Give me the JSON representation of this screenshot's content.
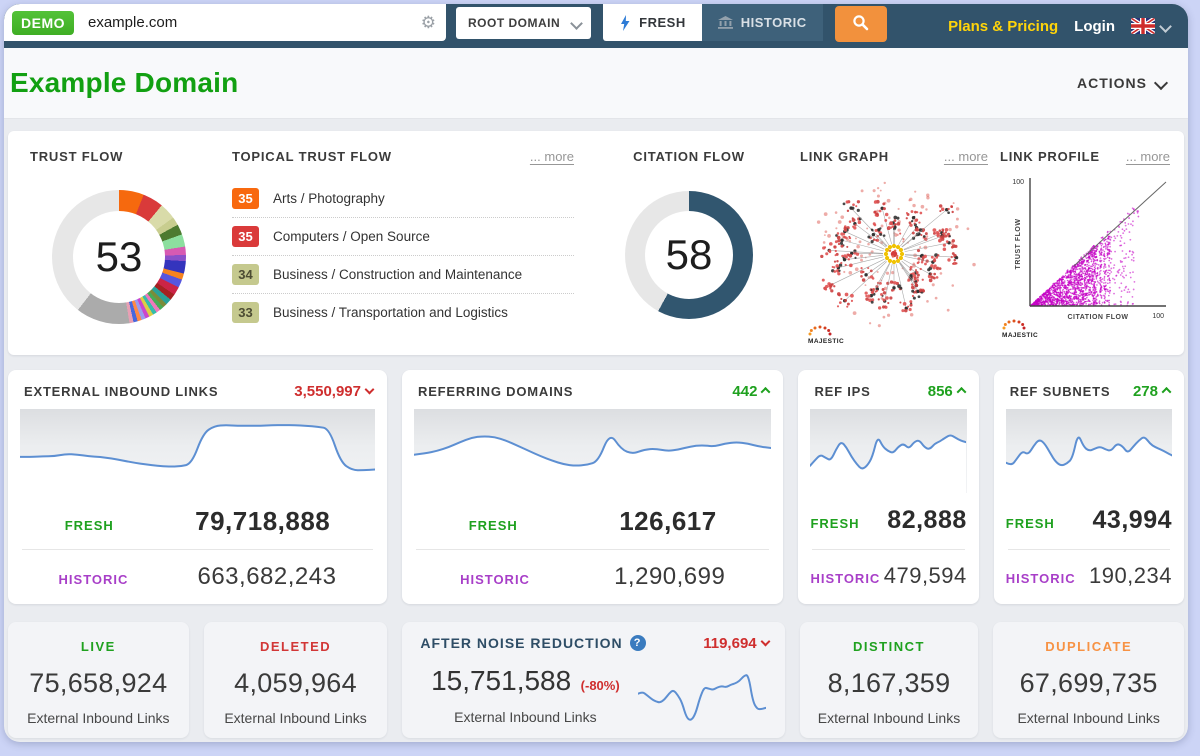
{
  "topnav": {
    "demo_badge": "DEMO",
    "search_value": "example.com",
    "scope_select": "ROOT DOMAIN",
    "tab_fresh": "FRESH",
    "tab_historic": "HISTORIC",
    "plans_pricing": "Plans & Pricing",
    "login": "Login"
  },
  "header": {
    "title": "Example Domain",
    "actions": "ACTIONS"
  },
  "colors": {
    "nav_background": "#32536b",
    "accent_green": "#1fa11f",
    "accent_red": "#cf2e2e",
    "accent_purple": "#a83fc8",
    "accent_orange": "#f79244",
    "spark_blue": "#5d8fd2",
    "title_green": "#12a012",
    "citation_blue": "#31566f",
    "search_button_orange": "#f2913d",
    "plans_yellow": "#ffd40a"
  },
  "overview": {
    "trust_flow": {
      "label": "TRUST FLOW",
      "value": "53"
    },
    "topical": {
      "label": "TOPICAL TRUST FLOW",
      "more": "... more",
      "items": [
        {
          "score": "35",
          "label": "Arts / Photography"
        },
        {
          "score": "35",
          "label": "Computers / Open Source"
        },
        {
          "score": "34",
          "label": "Business / Construction and Maintenance"
        },
        {
          "score": "33",
          "label": "Business / Transportation and Logistics"
        }
      ]
    },
    "citation_flow": {
      "label": "CITATION FLOW",
      "value": "58"
    },
    "link_graph": {
      "label": "LINK GRAPH",
      "more": "... more",
      "logo": "MAJESTIC"
    },
    "link_profile": {
      "label": "LINK PROFILE",
      "more": "... more",
      "logo": "MAJESTIC",
      "ylabel": "TRUST FLOW",
      "xlabel": "CITATION FLOW",
      "y_max": "100",
      "x_max": "100"
    }
  },
  "metric_cards": [
    {
      "title": "EXTERNAL INBOUND LINKS",
      "delta": "3,550,997",
      "delta_dir": "down",
      "fresh_label": "FRESH",
      "fresh_value": "79,718,888",
      "historic_label": "HISTORIC",
      "historic_value": "663,682,243"
    },
    {
      "title": "REFERRING DOMAINS",
      "delta": "442",
      "delta_dir": "up",
      "fresh_label": "FRESH",
      "fresh_value": "126,617",
      "historic_label": "HISTORIC",
      "historic_value": "1,290,699"
    },
    {
      "title": "REF IPS",
      "delta": "856",
      "delta_dir": "up",
      "fresh_label": "FRESH",
      "fresh_value": "82,888",
      "historic_label": "HISTORIC",
      "historic_value": "479,594"
    },
    {
      "title": "REF SUBNETS",
      "delta": "278",
      "delta_dir": "up",
      "fresh_label": "FRESH",
      "fresh_value": "43,994",
      "historic_label": "HISTORIC",
      "historic_value": "190,234"
    }
  ],
  "summary_cards": [
    {
      "label": "LIVE",
      "value": "75,658,924",
      "sub": "External Inbound Links"
    },
    {
      "label": "DELETED",
      "value": "4,059,964",
      "sub": "External Inbound Links"
    },
    {
      "label": "DISTINCT",
      "value": "8,167,359",
      "sub": "External Inbound Links"
    },
    {
      "label": "DUPLICATE",
      "value": "67,699,735",
      "sub": "External Inbound Links"
    }
  ],
  "noise_card": {
    "title": "AFTER NOISE REDUCTION",
    "delta": "119,694",
    "delta_dir": "down",
    "value": "15,751,588",
    "pct": "(-80%)",
    "sub": "External Inbound Links"
  },
  "chart_data": [
    {
      "id": "trust_flow_donut",
      "type": "pie",
      "title": "TRUST FLOW",
      "center_value": 53,
      "segments": [
        {
          "color": "#f6690e",
          "pct": 6
        },
        {
          "color": "#d93a3a",
          "pct": 5
        },
        {
          "color": "#d9dba9",
          "pct": 4
        },
        {
          "color": "#c8cd8f",
          "pct": 2
        },
        {
          "color": "#4d7a30",
          "pct": 2.5
        },
        {
          "color": "#8ddf9f",
          "pct": 3
        },
        {
          "color": "#d75ab2",
          "pct": 2
        },
        {
          "color": "#8a50c9",
          "pct": 1.5
        },
        {
          "color": "#3434bd",
          "pct": 3
        },
        {
          "color": "#f5831f",
          "pct": 1.5
        },
        {
          "color": "#5656de",
          "pct": 2
        },
        {
          "color": "#cb2446",
          "pct": 2
        },
        {
          "color": "#a42222",
          "pct": 1.5
        },
        {
          "color": "#2aa198",
          "pct": 1.5
        },
        {
          "color": "#7a8c3a",
          "pct": 1
        },
        {
          "color": "#46ab56",
          "pct": 1
        },
        {
          "color": "#ee79bc",
          "pct": 1
        },
        {
          "color": "#35bcab",
          "pct": 1
        },
        {
          "color": "#decd45",
          "pct": 1
        },
        {
          "color": "#cc45cc",
          "pct": 1
        },
        {
          "color": "#9a9aef",
          "pct": 1
        },
        {
          "color": "#ff8845",
          "pct": 1
        },
        {
          "color": "#4767de",
          "pct": 1
        },
        {
          "color": "#e8a0b4",
          "pct": 1
        },
        {
          "color": "#ababab",
          "pct": 13
        },
        {
          "color": "#e7e7e7",
          "pct": 39.5
        }
      ]
    },
    {
      "id": "citation_flow_donut",
      "type": "pie",
      "title": "CITATION FLOW",
      "center_value": 58,
      "segments": [
        {
          "color": "#31566f",
          "pct": 58
        },
        {
          "color": "#e7e7e7",
          "pct": 42
        }
      ]
    },
    {
      "id": "spark_external",
      "type": "line",
      "title": "EXTERNAL INBOUND LINKS trend",
      "values": [
        0.42,
        0.42,
        0.43,
        0.43,
        0.46,
        0.45,
        0.43,
        0.42,
        0.4,
        0.37,
        0.34,
        0.32,
        0.3,
        0.29,
        0.29,
        0.33,
        0.74,
        0.84,
        0.85,
        0.84,
        0.84,
        0.84,
        0.85,
        0.85,
        0.85,
        0.84,
        0.83,
        0.8,
        0.35,
        0.24,
        0.24,
        0.25
      ]
    },
    {
      "id": "spark_referring",
      "type": "line",
      "title": "REFERRING DOMAINS trend",
      "values": [
        0.45,
        0.47,
        0.5,
        0.55,
        0.62,
        0.68,
        0.7,
        0.69,
        0.64,
        0.57,
        0.5,
        0.43,
        0.37,
        0.32,
        0.3,
        0.31,
        0.36,
        0.75,
        0.52,
        0.46,
        0.52,
        0.53,
        0.5,
        0.52,
        0.56,
        0.58,
        0.56,
        0.6,
        0.62,
        0.6,
        0.56,
        0.54
      ]
    },
    {
      "id": "spark_ref_ips",
      "type": "line",
      "title": "REF IPS trend",
      "values": [
        0.3,
        0.38,
        0.45,
        0.41,
        0.37,
        0.52,
        0.63,
        0.55,
        0.42,
        0.32,
        0.25,
        0.3,
        0.42,
        0.7,
        0.56,
        0.5,
        0.47,
        0.56,
        0.6,
        0.53,
        0.62,
        0.65,
        0.55,
        0.52,
        0.6,
        0.63,
        0.68,
        0.72,
        0.68,
        0.64,
        0.62
      ]
    },
    {
      "id": "spark_ref_subnets",
      "type": "line",
      "title": "REF SUBNETS trend",
      "values": [
        0.34,
        0.3,
        0.4,
        0.5,
        0.45,
        0.57,
        0.66,
        0.6,
        0.47,
        0.35,
        0.3,
        0.33,
        0.4,
        0.74,
        0.56,
        0.5,
        0.53,
        0.56,
        0.52,
        0.5,
        0.6,
        0.57,
        0.47,
        0.56,
        0.64,
        0.7,
        0.6,
        0.55,
        0.52,
        0.48,
        0.44
      ]
    },
    {
      "id": "spark_noise",
      "type": "line",
      "title": "AFTER NOISE REDUCTION trend",
      "values": [
        0.52,
        0.55,
        0.5,
        0.44,
        0.4,
        0.38,
        0.43,
        0.52,
        0.58,
        0.5,
        0.38,
        0.14,
        0.1,
        0.2,
        0.45,
        0.62,
        0.6,
        0.58,
        0.62,
        0.64,
        0.62,
        0.66,
        0.68,
        0.72,
        0.8,
        0.82,
        0.4,
        0.28,
        0.28,
        0.3
      ]
    },
    {
      "id": "link_profile_scatter",
      "type": "scatter",
      "title": "LINK PROFILE",
      "xlabel": "CITATION FLOW",
      "ylabel": "TRUST FLOW",
      "xlim": [
        0,
        100
      ],
      "ylim": [
        0,
        100
      ],
      "description": "dense magenta point cloud below the y=x diagonal reference line"
    }
  ]
}
